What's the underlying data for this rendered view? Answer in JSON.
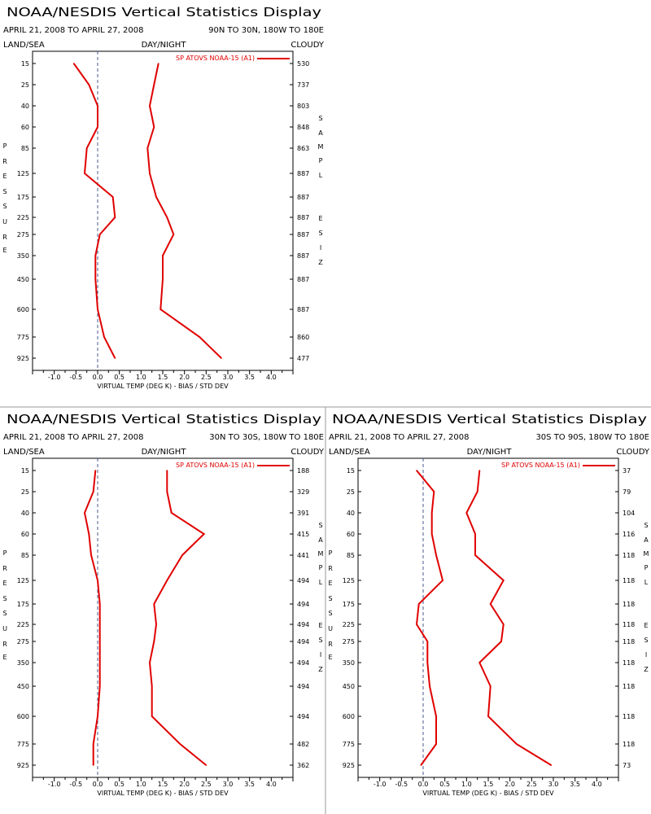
{
  "panels": [
    {
      "title": "NOAA/NESDIS Vertical Statistics Display",
      "date_range": "APRIL 21, 2008 TO APRIL 27, 2008",
      "region": "90N TO 30N, 180W TO 180E",
      "left_label": "LAND/SEA",
      "center_label": "DAY/NIGHT",
      "right_label": "CLOUDY",
      "left_axis_title": "PRESSURE",
      "right_axis_title": "SAMPLE SIZE",
      "xlabel": "VIRTUAL TEMP (DEG K) - BIAS / STD DEV",
      "legend": "SP ATOVS NOAA-15 (A1)"
    },
    {
      "title": "NOAA/NESDIS Vertical Statistics Display",
      "date_range": "APRIL 21, 2008 TO APRIL 27, 2008",
      "region": "30N TO 30S, 180W TO 180E",
      "left_label": "LAND/SEA",
      "center_label": "DAY/NIGHT",
      "right_label": "CLOUDY",
      "left_axis_title": "PRESSURE",
      "right_axis_title": "SAMPLE SIZE",
      "xlabel": "VIRTUAL TEMP (DEG K) - BIAS / STD DEV",
      "legend": "SP ATOVS NOAA-15 (A1)"
    },
    {
      "title": "NOAA/NESDIS Vertical Statistics Display",
      "date_range": "APRIL 21, 2008 TO APRIL 27, 2008",
      "region": "30S TO 90S, 180W TO 180E",
      "left_label": "LAND/SEA",
      "center_label": "DAY/NIGHT",
      "right_label": "CLOUDY",
      "left_axis_title": "PRESSURE",
      "right_axis_title": "SAMPLE SIZE",
      "xlabel": "VIRTUAL TEMP (DEG K) - BIAS / STD DEV",
      "legend": "SP ATOVS NOAA-15 (A1)"
    }
  ],
  "chart_data": [
    {
      "type": "line",
      "region": "90N TO 30N, 180W TO 180E",
      "xlabel": "VIRTUAL TEMP (DEG K) - BIAS / STD DEV",
      "xlim": [
        -1.5,
        4.5
      ],
      "x_ticks": [
        "-1.0",
        "-0.5",
        "0.0",
        "0.5",
        "1.0",
        "1.5",
        "2.0",
        "2.5",
        "3.0",
        "3.5",
        "4.0"
      ],
      "pressure_levels": [
        "15",
        "25",
        "40",
        "60",
        "85",
        "125",
        "175",
        "225",
        "275",
        "350",
        "450",
        "600",
        "775",
        "925"
      ],
      "sample_size": [
        "530",
        "737",
        "803",
        "848",
        "863",
        "887",
        "887",
        "887",
        "887",
        "887",
        "887",
        "887",
        "860",
        "477"
      ],
      "series": [
        {
          "name": "SP ATOVS NOAA-15 (A1)",
          "stat": "bias",
          "color": "#e00000",
          "values": [
            -0.55,
            -0.2,
            0.0,
            0.0,
            -0.25,
            -0.3,
            0.35,
            0.4,
            0.05,
            -0.05,
            -0.05,
            0.0,
            0.15,
            0.4
          ]
        },
        {
          "name": "SP ATOVS NOAA-15 (A1)",
          "stat": "std_dev",
          "color": "#e00000",
          "values": [
            1.4,
            1.3,
            1.2,
            1.3,
            1.15,
            1.2,
            1.35,
            1.6,
            1.75,
            1.5,
            1.5,
            1.45,
            2.35,
            2.85
          ]
        }
      ]
    },
    {
      "type": "line",
      "region": "30N TO 30S, 180W TO 180E",
      "xlabel": "VIRTUAL TEMP (DEG K) - BIAS / STD DEV",
      "xlim": [
        -1.5,
        4.5
      ],
      "x_ticks": [
        "-1.0",
        "-0.5",
        "0.0",
        "0.5",
        "1.0",
        "1.5",
        "2.0",
        "2.5",
        "3.0",
        "3.5",
        "4.0"
      ],
      "pressure_levels": [
        "15",
        "25",
        "40",
        "60",
        "85",
        "125",
        "175",
        "225",
        "275",
        "350",
        "450",
        "600",
        "775",
        "925"
      ],
      "sample_size": [
        "188",
        "329",
        "391",
        "415",
        "441",
        "494",
        "494",
        "494",
        "494",
        "494",
        "494",
        "494",
        "482",
        "362"
      ],
      "series": [
        {
          "name": "SP ATOVS NOAA-15 (A1)",
          "stat": "bias",
          "color": "#e00000",
          "values": [
            -0.05,
            -0.1,
            -0.3,
            -0.2,
            -0.15,
            0.0,
            0.05,
            0.05,
            0.05,
            0.05,
            0.05,
            0.0,
            -0.1,
            -0.1
          ]
        },
        {
          "name": "SP ATOVS NOAA-15 (A1)",
          "stat": "std_dev",
          "color": "#e00000",
          "values": [
            1.6,
            1.6,
            1.7,
            2.45,
            1.95,
            1.6,
            1.3,
            1.35,
            1.3,
            1.2,
            1.25,
            1.25,
            1.9,
            2.5
          ]
        }
      ]
    },
    {
      "type": "line",
      "region": "30S TO 90S, 180W TO 180E",
      "xlabel": "VIRTUAL TEMP (DEG K) - BIAS / STD DEV",
      "xlim": [
        -1.5,
        4.5
      ],
      "x_ticks": [
        "-1.0",
        "-0.5",
        "0.0",
        "0.5",
        "1.0",
        "1.5",
        "2.0",
        "2.5",
        "3.0",
        "3.5",
        "4.0"
      ],
      "pressure_levels": [
        "15",
        "25",
        "40",
        "60",
        "85",
        "125",
        "175",
        "225",
        "275",
        "350",
        "450",
        "600",
        "775",
        "925"
      ],
      "sample_size": [
        "37",
        "79",
        "104",
        "116",
        "118",
        "118",
        "118",
        "118",
        "118",
        "118",
        "118",
        "118",
        "118",
        "73"
      ],
      "series": [
        {
          "name": "SP ATOVS NOAA-15 (A1)",
          "stat": "bias",
          "color": "#e00000",
          "values": [
            -0.15,
            0.25,
            0.2,
            0.2,
            0.3,
            0.45,
            -0.1,
            -0.15,
            0.1,
            0.1,
            0.15,
            0.3,
            0.3,
            -0.05
          ]
        },
        {
          "name": "SP ATOVS NOAA-15 (A1)",
          "stat": "std_dev",
          "color": "#e00000",
          "values": [
            1.3,
            1.25,
            1.0,
            1.2,
            1.2,
            1.85,
            1.55,
            1.85,
            1.8,
            1.3,
            1.55,
            1.5,
            2.15,
            2.95
          ]
        }
      ]
    }
  ]
}
